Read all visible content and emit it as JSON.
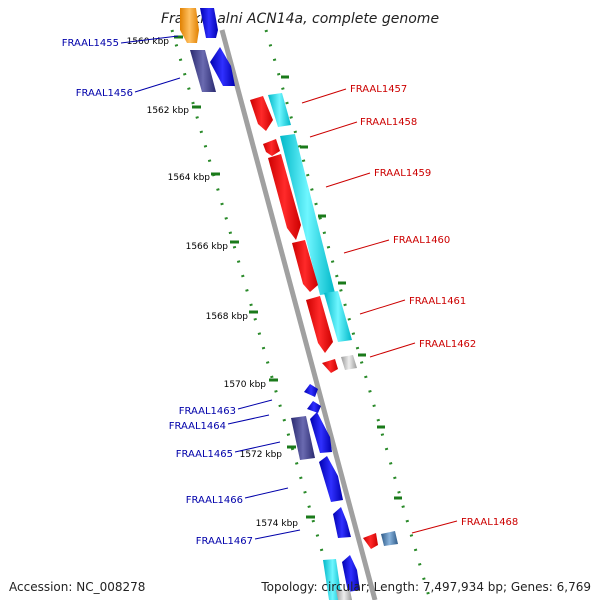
{
  "title": "Frankia alni ACN14a, complete genome",
  "accession": "Accession: NC_008278",
  "summary": "Topology: circular; Length: 7,497,934 bp; Genes: 6,769",
  "ticks": [
    "1560 kbp",
    "1562 kbp",
    "1564 kbp",
    "1566 kbp",
    "1568 kbp",
    "1570 kbp",
    "1572 kbp",
    "1574 kbp"
  ],
  "genes_left": [
    "FRAAL1455",
    "FRAAL1456",
    "FRAAL1463",
    "FRAAL1464",
    "FRAAL1465",
    "FRAAL1466",
    "FRAAL1467"
  ],
  "genes_right": [
    "FRAAL1457",
    "FRAAL1458",
    "FRAAL1459",
    "FRAAL1460",
    "FRAAL1461",
    "FRAAL1462",
    "FRAAL1468"
  ],
  "colors": {
    "left_label": "#0000aa",
    "right_label": "#cc0000",
    "dotted_guide": "#2a8a2a",
    "backbone": "#a0a0a0",
    "red": "#ff0000",
    "cyan": "#00e5ee",
    "blue": "#0000ee",
    "navy": "#3a3a8a",
    "orange": "#ff9900",
    "gray": "#b0b0b0",
    "steel": "#4a7aa8"
  }
}
